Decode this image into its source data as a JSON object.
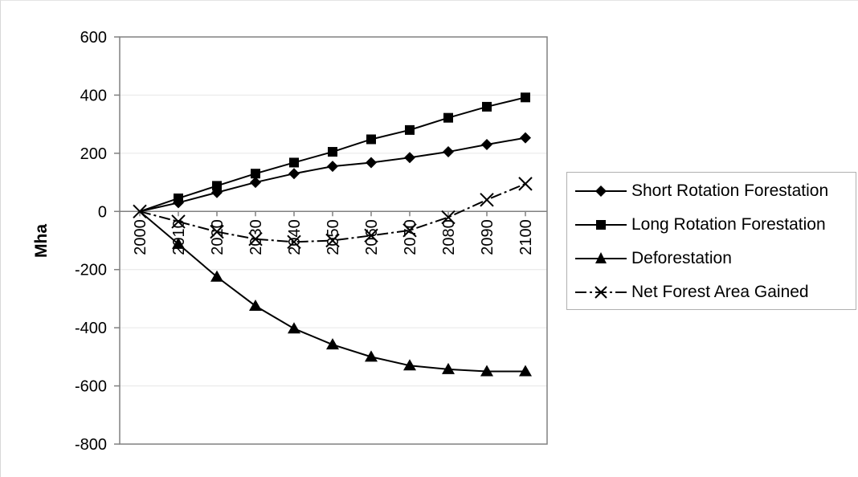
{
  "chart_data": {
    "type": "line",
    "title": "",
    "xlabel": "",
    "ylabel": "Mha",
    "x": [
      2000,
      2010,
      2020,
      2030,
      2040,
      2050,
      2060,
      2070,
      2080,
      2090,
      2100
    ],
    "x_tick_labels": [
      "2000",
      "2010",
      "2020",
      "2030",
      "2040",
      "2050",
      "2060",
      "2070",
      "2080",
      "2090",
      "2100"
    ],
    "y_tick_labels": [
      "600",
      "400",
      "200",
      "0",
      "-200",
      "-400",
      "-600",
      "-800"
    ],
    "y_ticks": [
      600,
      400,
      200,
      0,
      -200,
      -400,
      -600,
      -800
    ],
    "ylim": [
      -800,
      600
    ],
    "grid": true,
    "legend_position": "right",
    "series": [
      {
        "name": "Short Rotation Forestation",
        "marker": "diamond",
        "line": "solid",
        "values": [
          0,
          30,
          65,
          100,
          130,
          155,
          168,
          185,
          205,
          230,
          253
        ]
      },
      {
        "name": "Long Rotation Forestation",
        "marker": "square",
        "line": "solid",
        "values": [
          0,
          45,
          88,
          130,
          168,
          205,
          248,
          280,
          322,
          360,
          392
        ]
      },
      {
        "name": "Deforestation",
        "marker": "triangle",
        "line": "solid",
        "values": [
          0,
          -112,
          -225,
          -325,
          -403,
          -458,
          -500,
          -530,
          -543,
          -550,
          -550
        ]
      },
      {
        "name": "Net Forest Area Gained",
        "marker": "x",
        "line": "dashdot",
        "values": [
          0,
          -35,
          -70,
          -95,
          -105,
          -100,
          -83,
          -65,
          -20,
          40,
          95
        ]
      }
    ]
  }
}
